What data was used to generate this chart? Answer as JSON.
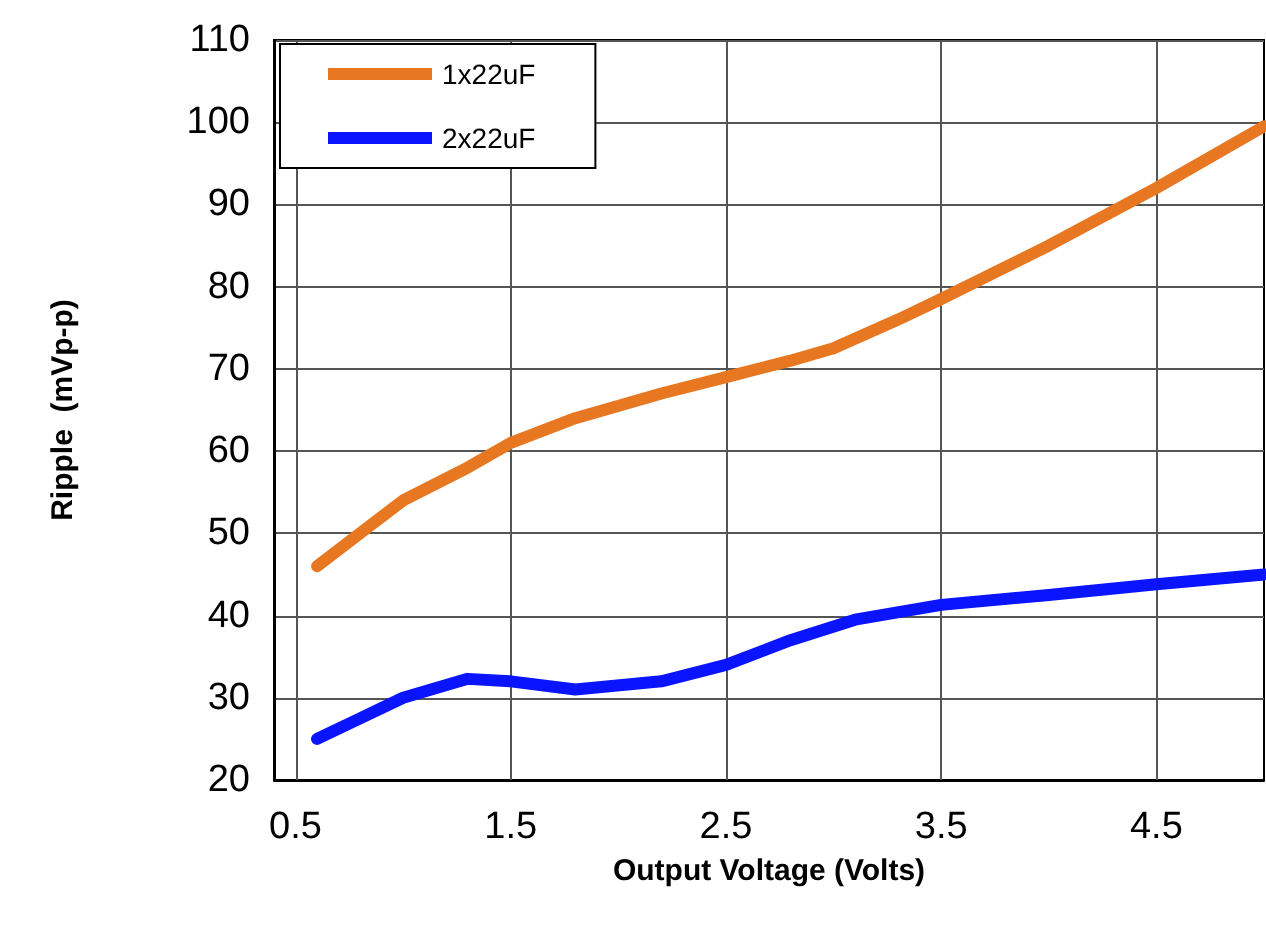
{
  "chart_data": {
    "type": "line",
    "xlabel": "Output Voltage (Volts)",
    "ylabel": "Ripple  (mVp-p)",
    "xlim": [
      0.4,
      5
    ],
    "xticks": [
      0.5,
      1.5,
      2.5,
      3.5,
      4.5
    ],
    "ylim": [
      20,
      110
    ],
    "yticks": [
      20,
      30,
      40,
      50,
      60,
      70,
      80,
      90,
      100,
      110
    ],
    "grid": true,
    "legend": "top left",
    "marker": "none",
    "line_style": "solid",
    "series": [
      {
        "name": "1x22uF",
        "color": "#e87722",
        "x": [
          0.6,
          0.8,
          1.0,
          1.3,
          1.5,
          1.8,
          2.2,
          2.5,
          2.8,
          3.0,
          3.3,
          3.5,
          4.0,
          4.5,
          5.0
        ],
        "values": [
          46,
          50,
          54,
          58,
          61,
          64,
          67,
          69,
          71,
          72.5,
          76,
          78.5,
          85,
          92,
          99.5
        ]
      },
      {
        "name": "2x22uF",
        "color": "#0a14ff",
        "x": [
          0.6,
          0.8,
          1.0,
          1.3,
          1.5,
          1.8,
          2.2,
          2.5,
          2.8,
          3.1,
          3.5,
          4.0,
          4.5,
          5.0
        ],
        "values": [
          25,
          27.5,
          30,
          32.3,
          32,
          31,
          32,
          34,
          37,
          39.5,
          41.3,
          42.5,
          43.8,
          45
        ]
      }
    ]
  }
}
